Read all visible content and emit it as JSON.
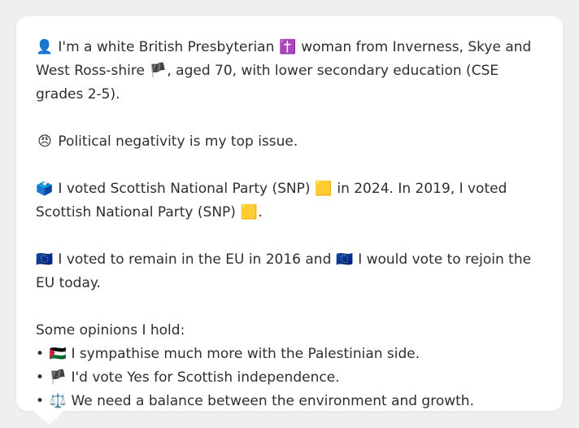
{
  "profile": {
    "identity": {
      "icon_person": "👤",
      "text1": "I'm a white British Presbyterian",
      "icon_cross": "✝️",
      "text2": "woman from Inverness, Skye and West Ross-shire",
      "icon_flag_scotland": "🏴",
      "text3": ", aged 70, with lower secondary education (CSE grades 2-5)."
    },
    "top_issue": {
      "icon": "😠",
      "text": "Political negativity is my top issue."
    },
    "vote_history": {
      "icon_ballot": "🗳️",
      "text1": "I voted Scottish National Party (SNP)",
      "icon_party": "🟨",
      "text2": "in 2024. In 2019, I voted Scottish National Party (SNP)",
      "icon_party2": "🟨",
      "text3": "."
    },
    "eu": {
      "icon1": "🇪🇺",
      "text1": "I voted to remain in the EU in 2016 and",
      "icon2": "🇪🇺",
      "text2": "I would vote to rejoin the EU today."
    },
    "opinions": {
      "heading": "Some opinions I hold:",
      "items": [
        {
          "icon": "🇵🇸",
          "text": "I sympathise much more with the Palestinian side."
        },
        {
          "icon": "🏴",
          "text": "I'd vote Yes for Scottish independence."
        },
        {
          "icon": "⚖️",
          "text": "We need a balance between the environment and growth."
        }
      ]
    }
  }
}
